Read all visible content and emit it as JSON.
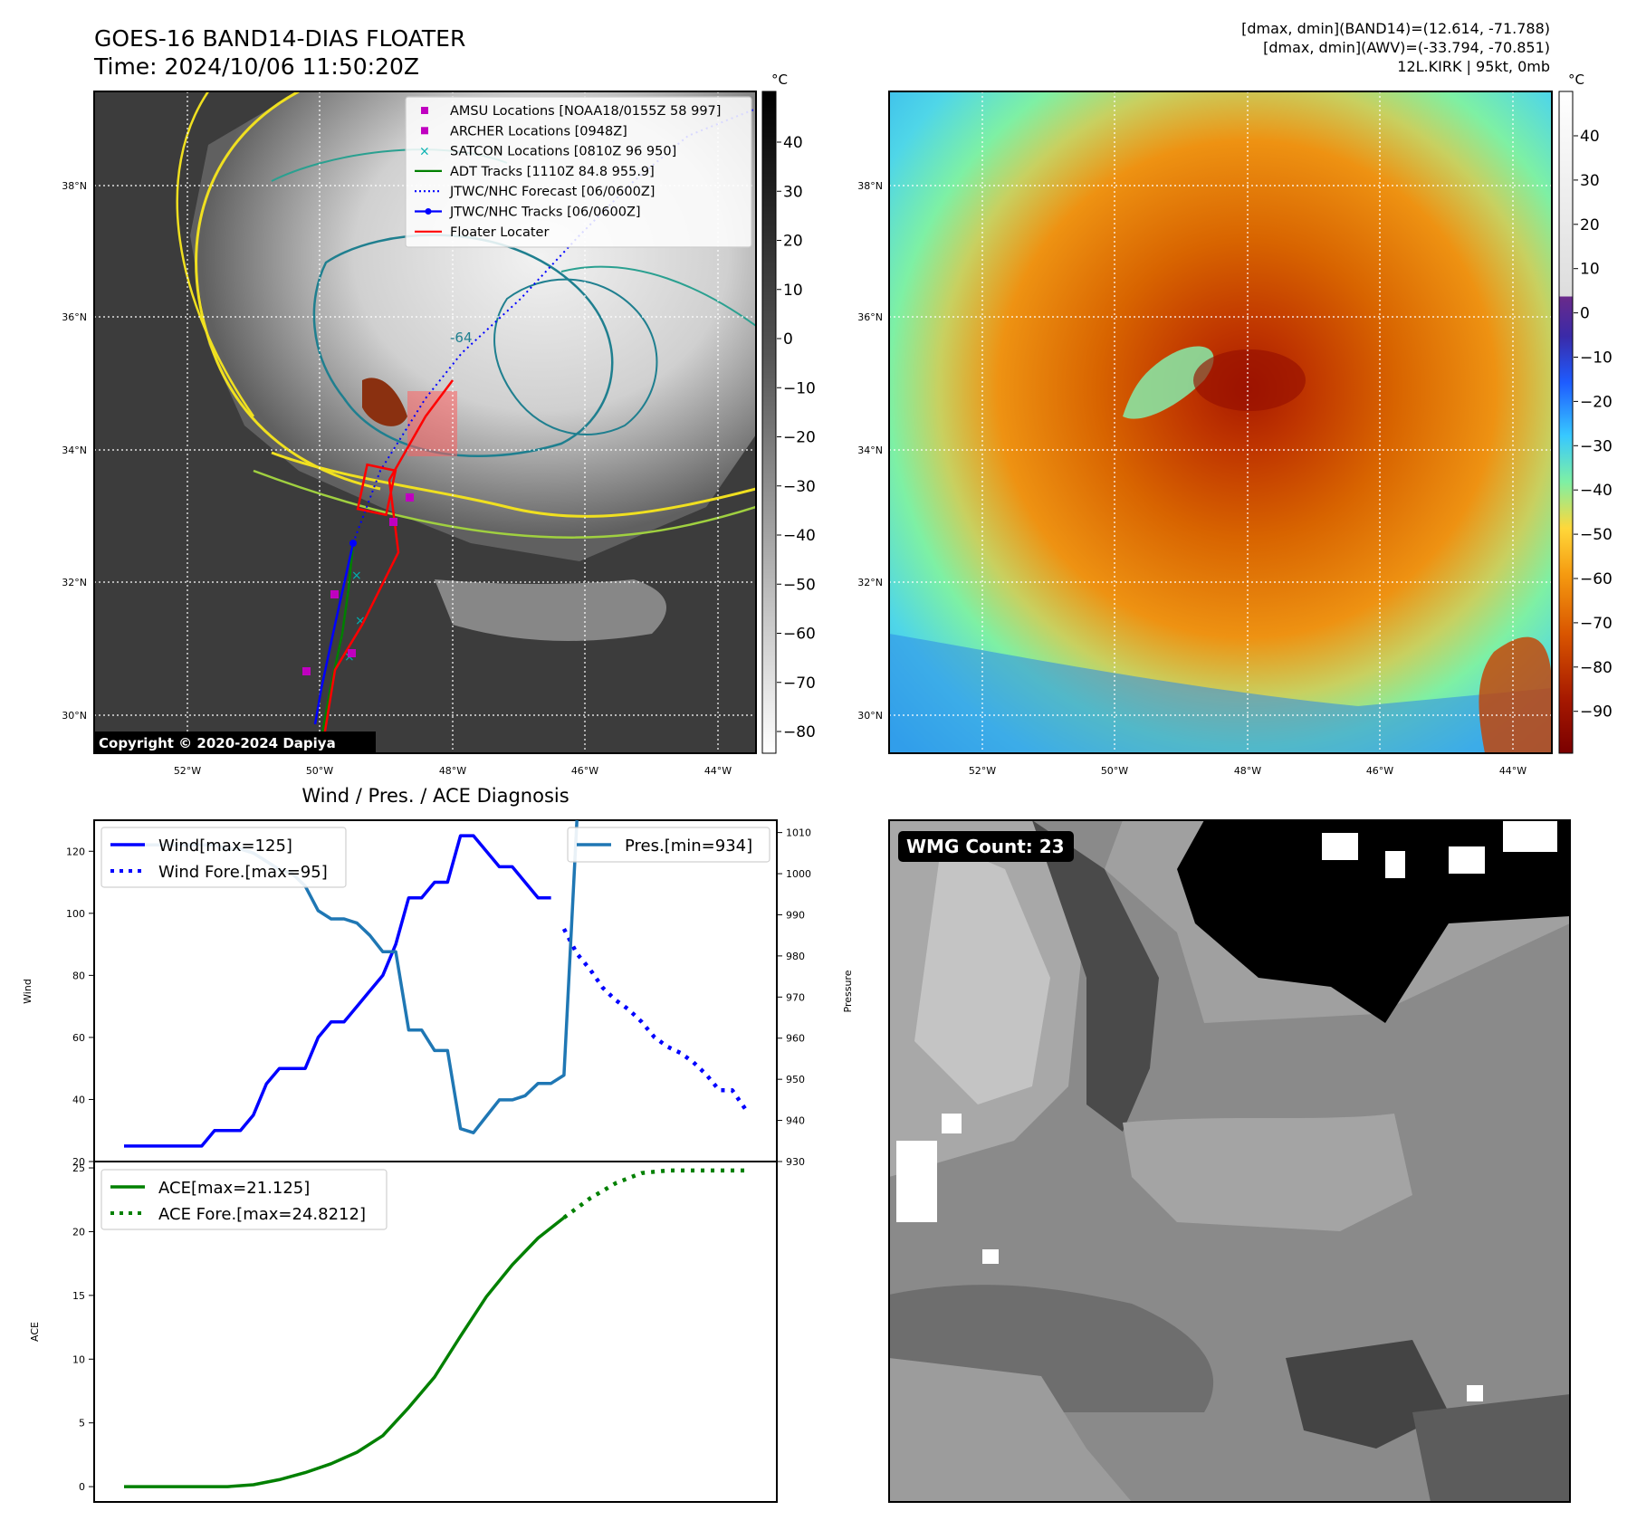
{
  "header": {
    "title": "GOES-16 BAND14-DIAS FLOATER",
    "time": "Time: 2024/10/06 11:50:20Z",
    "stat_band14": "[dmax, dmin](BAND14)=(12.614, -71.788)",
    "stat_awv": "[dmax, dmin](AWV)=(-33.794, -70.851)",
    "storm": "12L.KIRK | 95kt, 0mb"
  },
  "map_left": {
    "lat_labels": [
      "38°N",
      "36°N",
      "34°N",
      "32°N",
      "30°N"
    ],
    "lon_labels": [
      "52°W",
      "50°W",
      "48°W",
      "46°W",
      "44°W"
    ],
    "copyright": "Copyright © 2020-2024 Dapiya",
    "colorbar_unit": "°C",
    "colorbar_ticks": [
      "40",
      "30",
      "20",
      "10",
      "0",
      "−10",
      "−20",
      "−30",
      "−40",
      "−50",
      "−60",
      "−70",
      "−80"
    ],
    "legend": [
      {
        "label": "AMSU Locations [NOAA18/0155Z 58 997]",
        "color": "#c000c0",
        "marker": "square"
      },
      {
        "label": "ARCHER Locations [0948Z]",
        "color": "#c000c0",
        "marker": "square"
      },
      {
        "label": "SATCON Locations [0810Z 96 950]",
        "color": "#00b0b0",
        "marker": "x"
      },
      {
        "label": "ADT Tracks [1110Z 84.8 955.9]",
        "color": "#008000",
        "marker": "line"
      },
      {
        "label": "JTWC/NHC Forecast [06/0600Z]",
        "color": "#0000ff",
        "marker": "dotted"
      },
      {
        "label": "JTWC/NHC Tracks [06/0600Z]",
        "color": "#0000ff",
        "marker": "line-dot"
      },
      {
        "label": "Floater Locater",
        "color": "#ff0000",
        "marker": "line"
      }
    ],
    "contour_labels": [
      "-64"
    ]
  },
  "map_right": {
    "lat_labels": [
      "38°N",
      "36°N",
      "34°N",
      "32°N",
      "30°N"
    ],
    "lon_labels": [
      "52°W",
      "50°W",
      "48°W",
      "46°W",
      "44°W"
    ],
    "colorbar_unit": "°C",
    "colorbar_ticks": [
      "40",
      "30",
      "20",
      "10",
      "0",
      "−10",
      "−20",
      "−30",
      "−40",
      "−50",
      "−60",
      "−70",
      "−80",
      "−90"
    ]
  },
  "diagnosis": {
    "title": "Wind / Pres. / ACE Diagnosis",
    "wmg_count": "WMG Count: 23"
  },
  "chart_data": [
    {
      "type": "line",
      "title": "Wind / Pres. / ACE Diagnosis",
      "ylabel": "Wind",
      "ylabel_right": "Pressure",
      "ylim": [
        20,
        130
      ],
      "ylim_right": [
        930,
        1013
      ],
      "yticks": [
        20,
        40,
        60,
        80,
        100,
        120
      ],
      "yticks_right": [
        930,
        940,
        950,
        960,
        970,
        980,
        990,
        1000,
        1010
      ],
      "x_count": 49,
      "series": [
        {
          "name": "Wind[max=125]",
          "axis": "left",
          "color": "#0000ff",
          "style": "solid",
          "x": [
            0,
            1,
            2,
            3,
            4,
            5,
            6,
            7,
            8,
            9,
            10,
            11,
            12,
            13,
            14,
            15,
            16,
            17,
            18,
            19,
            20,
            21,
            22,
            23,
            24,
            25,
            26,
            27,
            28,
            29,
            30,
            31,
            32,
            33
          ],
          "values": [
            25,
            25,
            25,
            25,
            25,
            25,
            25,
            30,
            30,
            30,
            35,
            45,
            50,
            50,
            50,
            60,
            65,
            65,
            70,
            75,
            80,
            90,
            105,
            105,
            110,
            110,
            125,
            125,
            120,
            115,
            115,
            110,
            105,
            105
          ]
        },
        {
          "name": "Wind Fore.[max=95]",
          "axis": "left",
          "color": "#0000ff",
          "style": "dotted",
          "x": [
            34,
            35,
            36,
            37,
            38,
            39,
            40,
            41,
            42,
            43,
            44,
            45,
            46,
            47,
            48
          ],
          "values": [
            95,
            87,
            82,
            76,
            72,
            69,
            65,
            60,
            57,
            55,
            52,
            48,
            43,
            43,
            37
          ]
        },
        {
          "name": "Pres.[min=934]",
          "axis": "right",
          "color": "#1f77b4",
          "style": "solid",
          "x": [
            0,
            1,
            2,
            3,
            4,
            5,
            6,
            7,
            8,
            9,
            10,
            11,
            12,
            13,
            14,
            15,
            16,
            17,
            18,
            19,
            20,
            21,
            22,
            23,
            24,
            25,
            26,
            27,
            28,
            29,
            30,
            31,
            32,
            33,
            34,
            35
          ],
          "values": [
            1007,
            1007,
            1007,
            1007,
            1007,
            1007,
            1007,
            1007,
            1006,
            1006,
            1005,
            1003,
            1001,
            1000,
            997,
            991,
            989,
            989,
            988,
            985,
            981,
            981,
            962,
            962,
            957,
            957,
            938,
            937,
            941,
            945,
            945,
            946,
            949,
            949,
            951,
            1013
          ]
        }
      ]
    },
    {
      "type": "line",
      "ylabel": "ACE",
      "ylim": [
        -1.2,
        25.5
      ],
      "yticks": [
        0,
        5,
        10,
        15,
        20,
        25
      ],
      "x_count": 49,
      "series": [
        {
          "name": "ACE[max=21.125]",
          "color": "#008000",
          "style": "solid",
          "x": [
            0,
            2,
            4,
            6,
            8,
            10,
            12,
            14,
            16,
            18,
            20,
            22,
            24,
            26,
            28,
            30,
            32,
            34
          ],
          "values": [
            0,
            0,
            0,
            0,
            0,
            0.15,
            0.55,
            1.1,
            1.8,
            2.7,
            4,
            6.2,
            8.6,
            11.8,
            14.9,
            17.4,
            19.5,
            21.1
          ]
        },
        {
          "name": "ACE Fore.[max=24.8212]",
          "color": "#008000",
          "style": "dotted",
          "x": [
            34,
            36,
            38,
            40,
            42,
            44,
            46,
            48
          ],
          "values": [
            21.1,
            22.6,
            23.8,
            24.6,
            24.8,
            24.8,
            24.8,
            24.8
          ]
        }
      ]
    }
  ]
}
